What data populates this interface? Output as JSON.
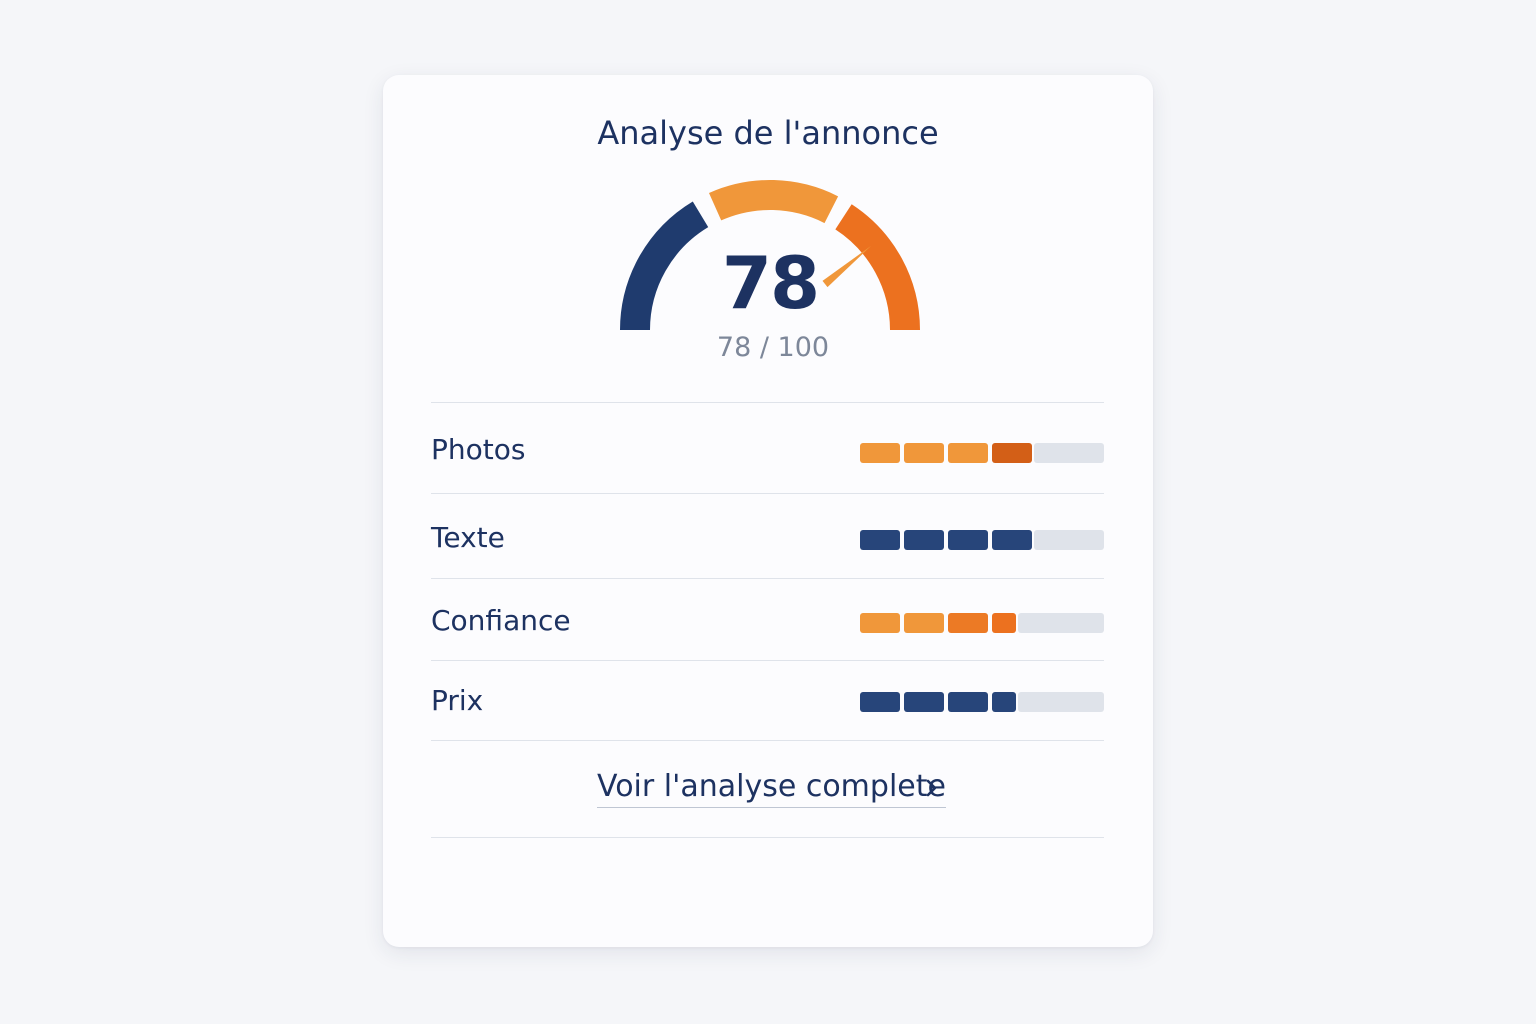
{
  "card": {
    "title": "Analyse de l'annonce",
    "score": {
      "value": "78",
      "caption": "78 / 100",
      "numeric": 78,
      "max": 100
    },
    "gauge_colors": {
      "low": "#1f3b6e",
      "mid": "#f0973a",
      "high": "#ec711f"
    },
    "metrics": [
      {
        "label": "Photos",
        "level": 4,
        "max": 5,
        "colors": [
          "#f0973a",
          "#f0973a",
          "#f0973a",
          "#d35f17"
        ]
      },
      {
        "label": "Texte",
        "level": 4,
        "max": 5,
        "colors": [
          "#27457a",
          "#27457a",
          "#27457a",
          "#27457a"
        ]
      },
      {
        "label": "Confiance",
        "level": 3.6,
        "max": 5,
        "colors": [
          "#f0973a",
          "#f0973a",
          "#ec7a25",
          "#ec711f"
        ]
      },
      {
        "label": "Prix",
        "level": 3.6,
        "max": 5,
        "colors": [
          "#27457a",
          "#27457a",
          "#27457a",
          "#27457a"
        ]
      }
    ],
    "empty_color": "#dfe3ea",
    "link": {
      "label": "Voir l'analyse complete",
      "icon": "chevron-right-icon"
    }
  }
}
